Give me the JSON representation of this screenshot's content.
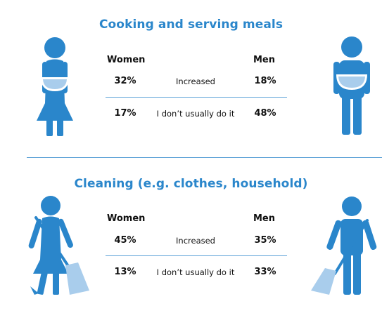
{
  "colors": {
    "accent": "#2a86cb",
    "figure": "#2a86cb",
    "light": "#a9cdec"
  },
  "sections": [
    {
      "title": "Cooking and serving meals",
      "col_women": "Women",
      "col_men": "Men",
      "rows": [
        {
          "women": "32%",
          "label": "Increased",
          "men": "18%"
        },
        {
          "women": "17%",
          "label": "I don’t usually do it",
          "men": "48%"
        }
      ],
      "icons": [
        "woman-with-bowl-icon",
        "man-with-bowl-icon"
      ]
    },
    {
      "title": "Cleaning (e.g. clothes, household)",
      "col_women": "Women",
      "col_men": "Men",
      "rows": [
        {
          "women": "45%",
          "label": "Increased",
          "men": "35%"
        },
        {
          "women": "13%",
          "label": "I don’t usually do it",
          "men": "33%"
        }
      ],
      "icons": [
        "woman-sweeping-icon",
        "man-sweeping-icon"
      ]
    }
  ]
}
